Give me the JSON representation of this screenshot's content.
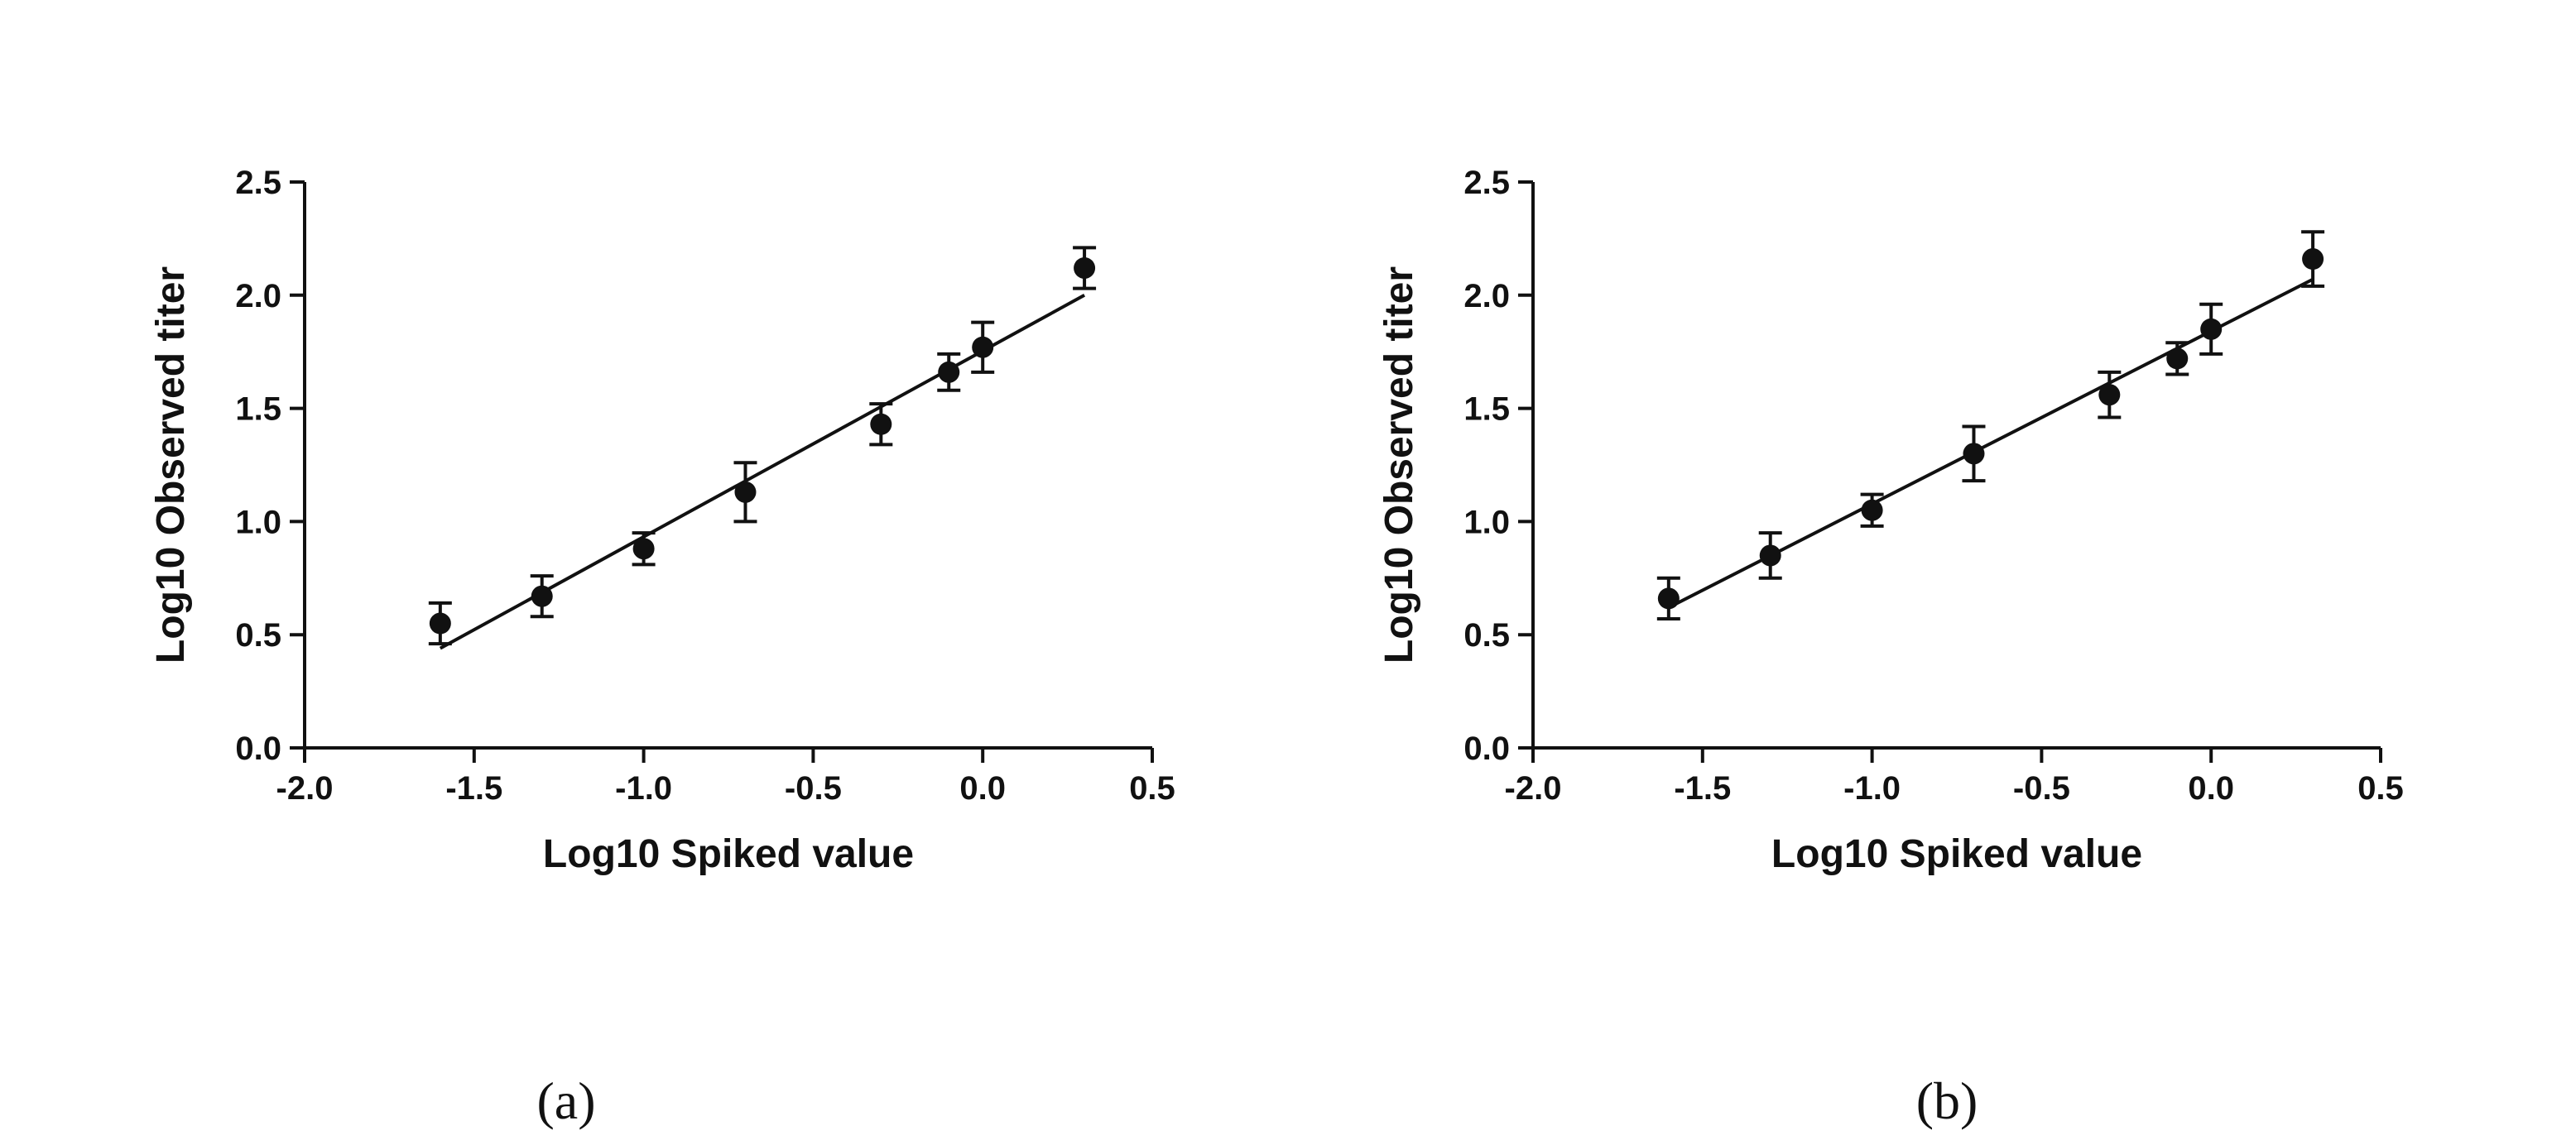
{
  "colors": {
    "ink": "#111111",
    "background": "#ffffff"
  },
  "chart_data": [
    {
      "type": "scatter",
      "panel_label": "(a)",
      "xlabel": "Log10 Spiked value",
      "ylabel": "Log10 Observed titer",
      "xlim": [
        -2.0,
        0.5
      ],
      "ylim": [
        0.0,
        2.5
      ],
      "xticks": [
        "-2.0",
        "-1.5",
        "-1.0",
        "-0.5",
        "0.0",
        "0.5"
      ],
      "yticks": [
        "0.0",
        "0.5",
        "1.0",
        "1.5",
        "2.0",
        "2.5"
      ],
      "grid": false,
      "points": [
        {
          "x": -1.6,
          "y": 0.55,
          "err": 0.09
        },
        {
          "x": -1.3,
          "y": 0.67,
          "err": 0.09
        },
        {
          "x": -1.0,
          "y": 0.88,
          "err": 0.07
        },
        {
          "x": -0.7,
          "y": 1.13,
          "err": 0.13
        },
        {
          "x": -0.3,
          "y": 1.43,
          "err": 0.09
        },
        {
          "x": -0.1,
          "y": 1.66,
          "err": 0.08
        },
        {
          "x": 0.0,
          "y": 1.77,
          "err": 0.11
        },
        {
          "x": 0.3,
          "y": 2.12,
          "err": 0.09
        }
      ],
      "fit_line": {
        "x": [
          -1.6,
          0.3
        ],
        "y": [
          0.44,
          2.0
        ]
      }
    },
    {
      "type": "scatter",
      "panel_label": "(b)",
      "xlabel": "Log10 Spiked value",
      "ylabel": "Log10 Observed titer",
      "xlim": [
        -2.0,
        0.5
      ],
      "ylim": [
        0.0,
        2.5
      ],
      "xticks": [
        "-2.0",
        "-1.5",
        "-1.0",
        "-0.5",
        "0.0",
        "0.5"
      ],
      "yticks": [
        "0.0",
        "0.5",
        "1.0",
        "1.5",
        "2.0",
        "2.5"
      ],
      "grid": false,
      "points": [
        {
          "x": -1.6,
          "y": 0.66,
          "err": 0.09
        },
        {
          "x": -1.3,
          "y": 0.85,
          "err": 0.1
        },
        {
          "x": -1.0,
          "y": 1.05,
          "err": 0.07
        },
        {
          "x": -0.7,
          "y": 1.3,
          "err": 0.12
        },
        {
          "x": -0.3,
          "y": 1.56,
          "err": 0.1
        },
        {
          "x": -0.1,
          "y": 1.72,
          "err": 0.07
        },
        {
          "x": 0.0,
          "y": 1.85,
          "err": 0.11
        },
        {
          "x": 0.3,
          "y": 2.16,
          "err": 0.12
        }
      ],
      "fit_line": {
        "x": [
          -1.6,
          0.3
        ],
        "y": [
          0.62,
          2.07
        ]
      }
    }
  ]
}
